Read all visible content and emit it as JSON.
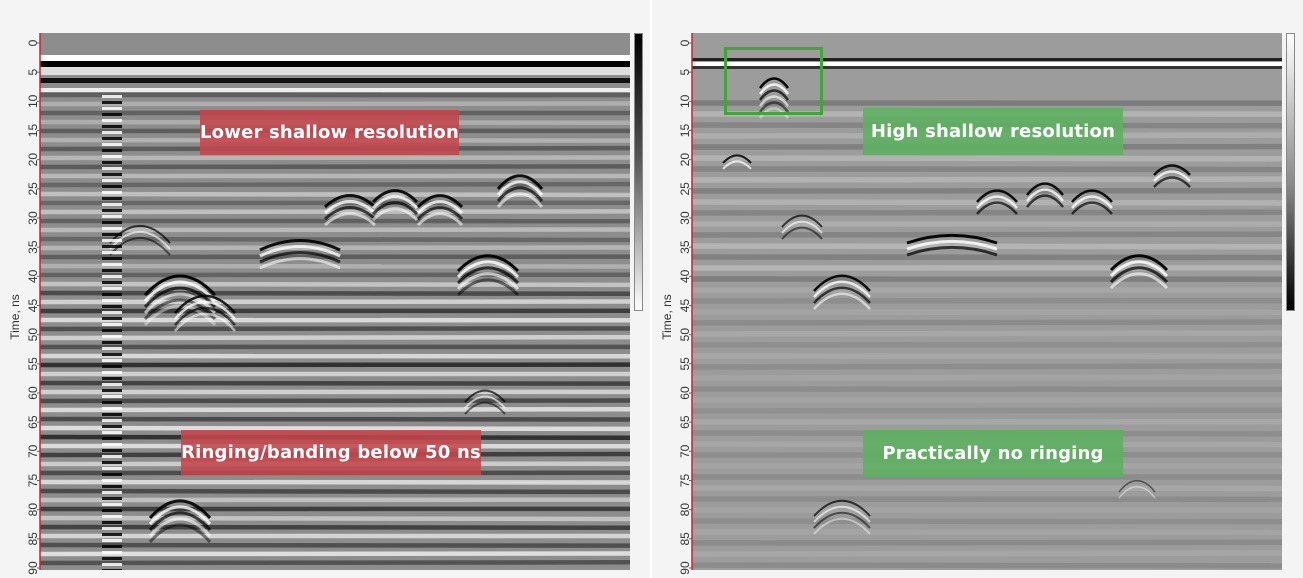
{
  "chart_data": [
    {
      "type": "heatmap",
      "title": "",
      "ylabel": "Time, ns",
      "xlabel": "",
      "ylim": [
        0,
        90
      ],
      "y_axis_inverted": true,
      "yticks": [
        "0",
        "5",
        "10",
        "15",
        "20",
        "25",
        "30",
        "35",
        "40",
        "45",
        "50",
        "55",
        "60",
        "65",
        "70",
        "75",
        "80",
        "85",
        "90"
      ],
      "colorscale": "grayscale",
      "colorbar": "right, black (top) to white (bottom)",
      "annotations": [
        "Lower shallow resolution",
        "Ringing/banding below 50 ns"
      ],
      "annotation_color": "#c4464c"
    },
    {
      "type": "heatmap",
      "title": "",
      "ylabel": "Time, ns",
      "xlabel": "",
      "ylim": [
        0,
        90
      ],
      "y_axis_inverted": true,
      "yticks": [
        "0",
        "5",
        "10",
        "15",
        "20",
        "25",
        "30",
        "35",
        "40",
        "45",
        "50",
        "55",
        "60",
        "65",
        "70",
        "75",
        "80",
        "85",
        "90"
      ],
      "colorscale": "grayscale",
      "colorbar": "right, white (top) to black (bottom)",
      "annotations": [
        "High shallow resolution",
        "Practically no ringing"
      ],
      "annotation_color": "#5cb060",
      "highlight_box_color": "#3fa637"
    }
  ]
}
